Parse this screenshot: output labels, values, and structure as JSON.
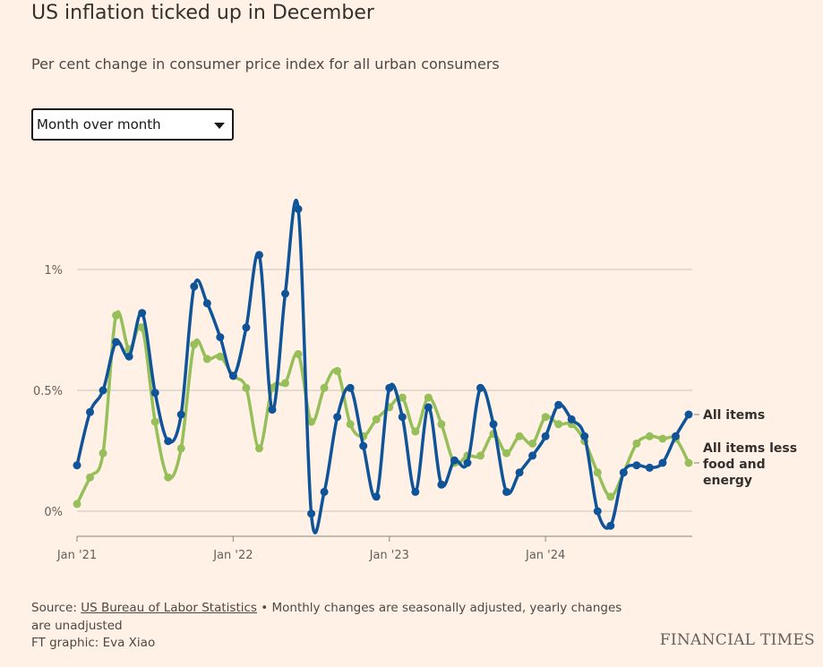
{
  "title": "US inflation ticked up in December",
  "subtitle": "Per cent change in consumer price index for all urban consumers",
  "dropdown": {
    "selected": "Month over month"
  },
  "chart_data": {
    "type": "line",
    "title": "US inflation ticked up in December",
    "ylim": [
      -0.1,
      1.3
    ],
    "y_ticks": [
      {
        "value": 0,
        "label": "0%"
      },
      {
        "value": 0.5,
        "label": "0.5%"
      },
      {
        "value": 1,
        "label": "1%"
      }
    ],
    "x_ticks": [
      {
        "index": 0,
        "label": "Jan '21"
      },
      {
        "index": 12,
        "label": "Jan '22"
      },
      {
        "index": 24,
        "label": "Jan '23"
      },
      {
        "index": 36,
        "label": "Jan '24"
      }
    ],
    "x_range": [
      "2021-01",
      "2024-12"
    ],
    "grid": true,
    "legend": "direct labels at right",
    "series": [
      {
        "name": "All items",
        "color": "#0f5499",
        "values": [
          0.19,
          0.41,
          0.5,
          0.7,
          0.64,
          0.82,
          0.49,
          0.29,
          0.4,
          0.93,
          0.86,
          0.72,
          0.56,
          0.76,
          1.06,
          0.42,
          0.9,
          1.25,
          -0.01,
          0.08,
          0.39,
          0.51,
          0.27,
          0.06,
          0.51,
          0.39,
          0.08,
          0.43,
          0.11,
          0.21,
          0.2,
          0.51,
          0.36,
          0.08,
          0.16,
          0.23,
          0.31,
          0.44,
          0.38,
          0.31,
          0.0,
          -0.06,
          0.16,
          0.19,
          0.18,
          0.2,
          0.31,
          0.4
        ]
      },
      {
        "name": "All items less food and energy",
        "label_lines": [
          "All items less",
          "food and",
          "energy"
        ],
        "color": "#96bf5a",
        "values": [
          0.03,
          0.14,
          0.24,
          0.81,
          0.67,
          0.76,
          0.37,
          0.14,
          0.26,
          0.69,
          0.63,
          0.64,
          0.56,
          0.51,
          0.26,
          0.51,
          0.53,
          0.65,
          0.37,
          0.51,
          0.58,
          0.36,
          0.31,
          0.38,
          0.43,
          0.47,
          0.33,
          0.47,
          0.36,
          0.2,
          0.23,
          0.23,
          0.32,
          0.24,
          0.31,
          0.28,
          0.39,
          0.36,
          0.36,
          0.29,
          0.16,
          0.06,
          0.16,
          0.28,
          0.31,
          0.3,
          0.3,
          0.2
        ]
      }
    ]
  },
  "footer": {
    "source_prefix": "Source: ",
    "source_link": "US Bureau of Labor Statistics",
    "source_note": " • Monthly changes are seasonally adjusted, yearly changes are unadjusted",
    "credit": "FT graphic: Eva Xiao"
  },
  "logo": "FINANCIAL TIMES"
}
